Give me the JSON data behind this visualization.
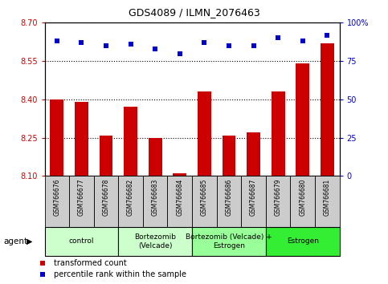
{
  "title": "GDS4089 / ILMN_2076463",
  "samples": [
    "GSM766676",
    "GSM766677",
    "GSM766678",
    "GSM766682",
    "GSM766683",
    "GSM766684",
    "GSM766685",
    "GSM766686",
    "GSM766687",
    "GSM766679",
    "GSM766680",
    "GSM766681"
  ],
  "bar_values": [
    8.4,
    8.39,
    8.26,
    8.37,
    8.25,
    8.11,
    8.43,
    8.26,
    8.27,
    8.43,
    8.54,
    8.62
  ],
  "dot_values": [
    88,
    87,
    85,
    86,
    83,
    80,
    87,
    85,
    85,
    90,
    88,
    92
  ],
  "ylim": [
    8.1,
    8.7
  ],
  "y2lim": [
    0,
    100
  ],
  "yticks": [
    8.1,
    8.25,
    8.4,
    8.55,
    8.7
  ],
  "y2ticks": [
    0,
    25,
    50,
    75,
    100
  ],
  "bar_color": "#cc0000",
  "dot_color": "#0000cc",
  "bar_width": 0.55,
  "groups": [
    {
      "label": "control",
      "start": 0,
      "end": 3,
      "color": "#ccffcc"
    },
    {
      "label": "Bortezomib\n(Velcade)",
      "start": 3,
      "end": 6,
      "color": "#ccffcc"
    },
    {
      "label": "Bortezomib (Velcade) +\nEstrogen",
      "start": 6,
      "end": 9,
      "color": "#99ff99"
    },
    {
      "label": "Estrogen",
      "start": 9,
      "end": 12,
      "color": "#33ee33"
    }
  ],
  "legend_items": [
    {
      "label": "transformed count",
      "color": "#cc0000"
    },
    {
      "label": "percentile rank within the sample",
      "color": "#0000cc"
    }
  ],
  "xlabel_agent": "agent",
  "tick_label_color": "#cc0000",
  "right_tick_color": "#0000cc",
  "grid_linestyle": "dotted",
  "xticklabel_bg": "#cccccc",
  "figsize": [
    4.83,
    3.54
  ],
  "dpi": 100
}
